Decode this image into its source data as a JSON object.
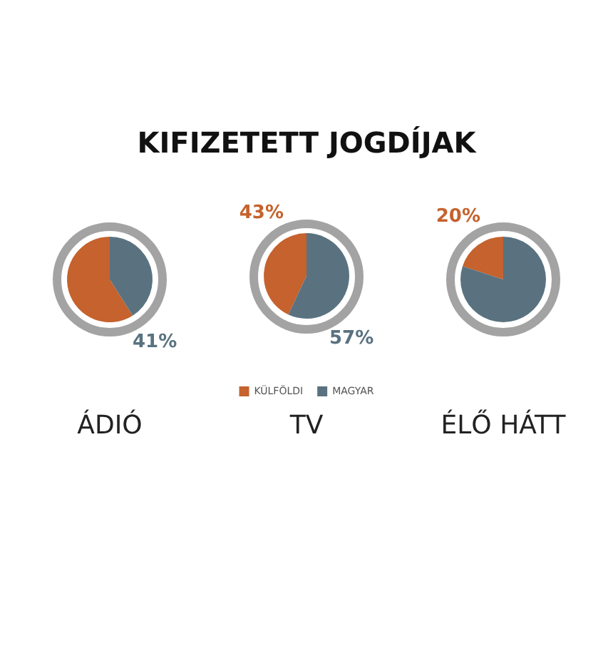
{
  "chart_data": [
    {
      "type": "other",
      "title": "KIFIZETETT JOGDÍJAK"
    },
    {
      "type": "pie",
      "subtitle": "ÁDIÓ",
      "values": [
        59,
        41
      ],
      "colors": [
        "#c5622d",
        "#5a7280"
      ],
      "value_labels": [
        null,
        "41%"
      ]
    },
    {
      "type": "pie",
      "subtitle": "TV",
      "categories": [
        "KÜLFÖLDI",
        "MAGYAR"
      ],
      "values": [
        43,
        57
      ],
      "colors": [
        "#c5622d",
        "#5a7280"
      ],
      "value_labels": [
        "43%",
        "57%"
      ],
      "legend": "bottom"
    },
    {
      "type": "pie",
      "subtitle": "ÉLŐ HÁTT",
      "values": [
        20,
        80
      ],
      "colors": [
        "#c5622d",
        "#5a7280"
      ],
      "value_labels": [
        "20%",
        null
      ]
    }
  ]
}
